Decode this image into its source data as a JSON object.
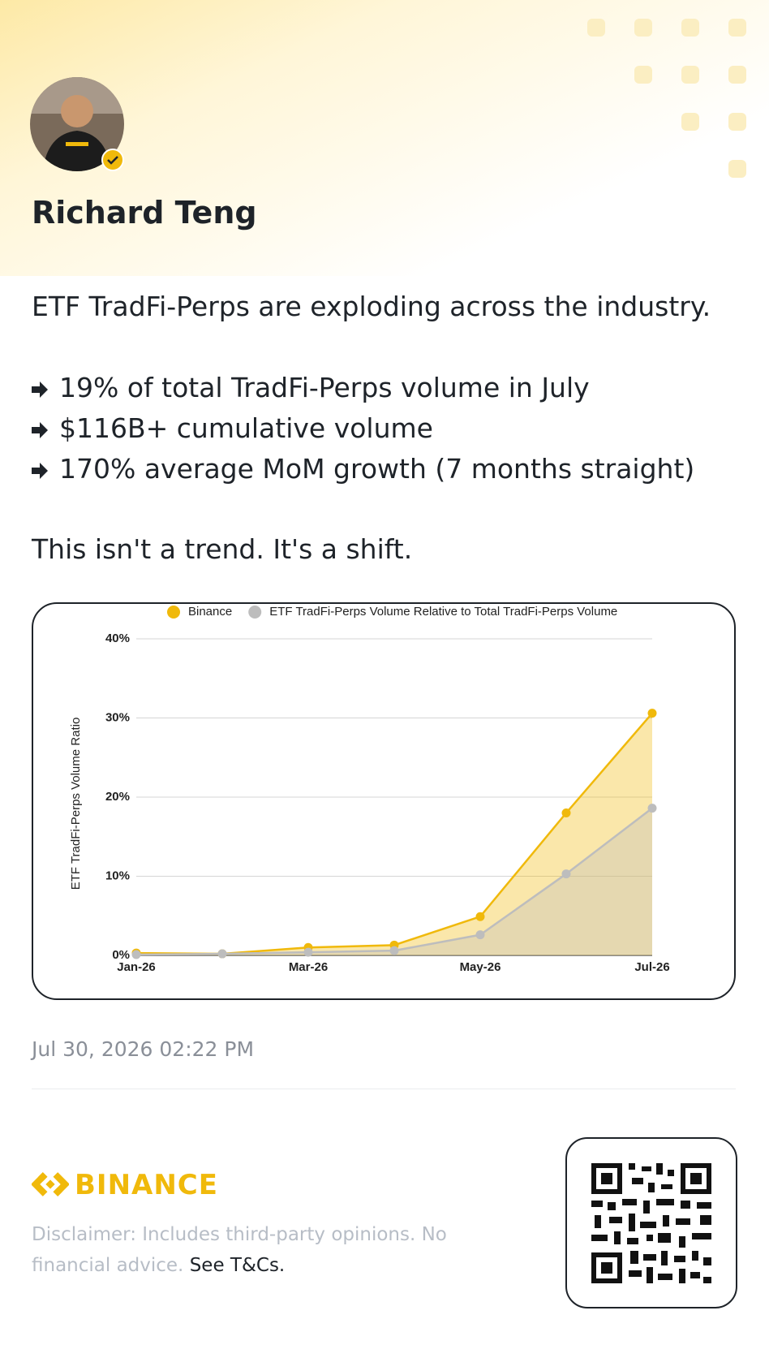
{
  "author": "Richard Teng",
  "post": {
    "lines": [
      "ETF TradFi-Perps are exploding across the industry.",
      "19% of total TradFi-Perps volume in July",
      "$116B+ cumulative volume",
      "170% average MoM growth (7 months straight)",
      "This isn't a trend. It's a shift."
    ]
  },
  "chart_data": {
    "type": "line",
    "y_label": "ETF TradFi-Perps Volume Ratio",
    "categories": [
      "Jan-26",
      null,
      "Mar-26",
      null,
      "May-26",
      null,
      "Jul-26"
    ],
    "series": [
      {
        "name": "Binance",
        "color": "#F0B90B",
        "values": [
          0.3,
          0.2,
          1.0,
          1.3,
          4.9,
          18.0,
          30.6
        ]
      },
      {
        "name": "ETF TradFi-Perps Volume Relative to Total TradFi-Perps Volume",
        "color": "#BDBDBD",
        "values": [
          0.1,
          0.2,
          0.4,
          0.6,
          2.6,
          10.3,
          18.6
        ]
      }
    ],
    "ylim": [
      0,
      40
    ],
    "yticks": [
      {
        "value": 0,
        "label": "0%"
      },
      {
        "value": 10,
        "label": "10%"
      },
      {
        "value": 20,
        "label": "20%"
      },
      {
        "value": 30,
        "label": "30%"
      },
      {
        "value": 40,
        "label": "40%"
      }
    ],
    "grid": true,
    "legend_position": "top",
    "area": true
  },
  "timestamp": "Jul 30, 2026 02:22 PM",
  "footer": {
    "brand": "BINANCE",
    "disclaimer": "Disclaimer: Includes third-party opinions. No financial advice.",
    "link": "See T&Cs."
  }
}
